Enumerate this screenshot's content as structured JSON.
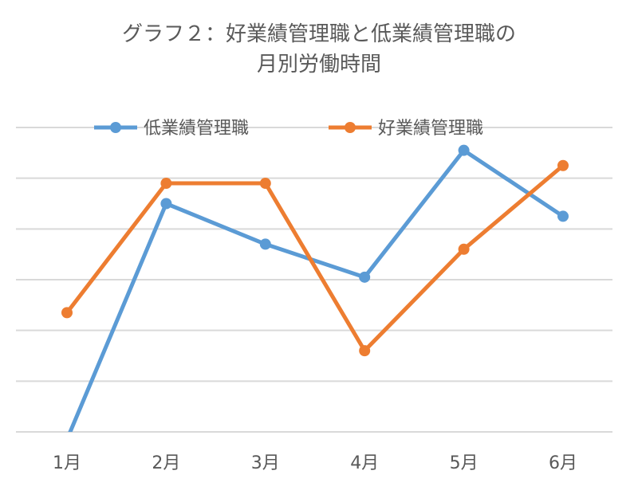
{
  "chart_data": {
    "type": "line",
    "title_line1": "グラフ２：好業績管理職と低業績管理職の",
    "title_line2": "月別労働時間",
    "categories": [
      "1月",
      "2月",
      "3月",
      "4月",
      "5月",
      "6月"
    ],
    "ylim": [
      0,
      6
    ],
    "grid": true,
    "legend_position": "top",
    "series": [
      {
        "name": "低業績管理職",
        "color": "#5b9bd5",
        "values": [
          -0.15,
          4.5,
          3.7,
          3.05,
          5.55,
          4.25
        ]
      },
      {
        "name": "好業績管理職",
        "color": "#ed7d31",
        "values": [
          2.35,
          4.9,
          4.9,
          1.6,
          3.6,
          5.25
        ]
      }
    ]
  }
}
